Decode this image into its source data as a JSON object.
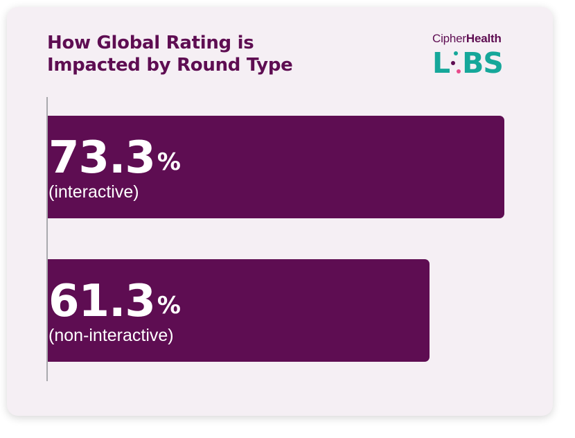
{
  "chart_data": {
    "type": "bar",
    "orientation": "horizontal",
    "title_lines": [
      "How Global Rating is",
      "Impacted by Round Type"
    ],
    "categories": [
      "(interactive)",
      "(non-interactive)"
    ],
    "values": [
      73.3,
      61.3
    ],
    "value_suffix": "%",
    "xlim": [
      0,
      74.5
    ],
    "grid": false,
    "legend": "none",
    "bar_color": "#5e0d52"
  },
  "logo": {
    "brand_light": "Cipher",
    "brand_bold": "Health",
    "labs_left": "L",
    "labs_right": "BS",
    "dot_colors": [
      "#16a79a",
      "#5e0d52",
      "#e84b8a"
    ]
  }
}
